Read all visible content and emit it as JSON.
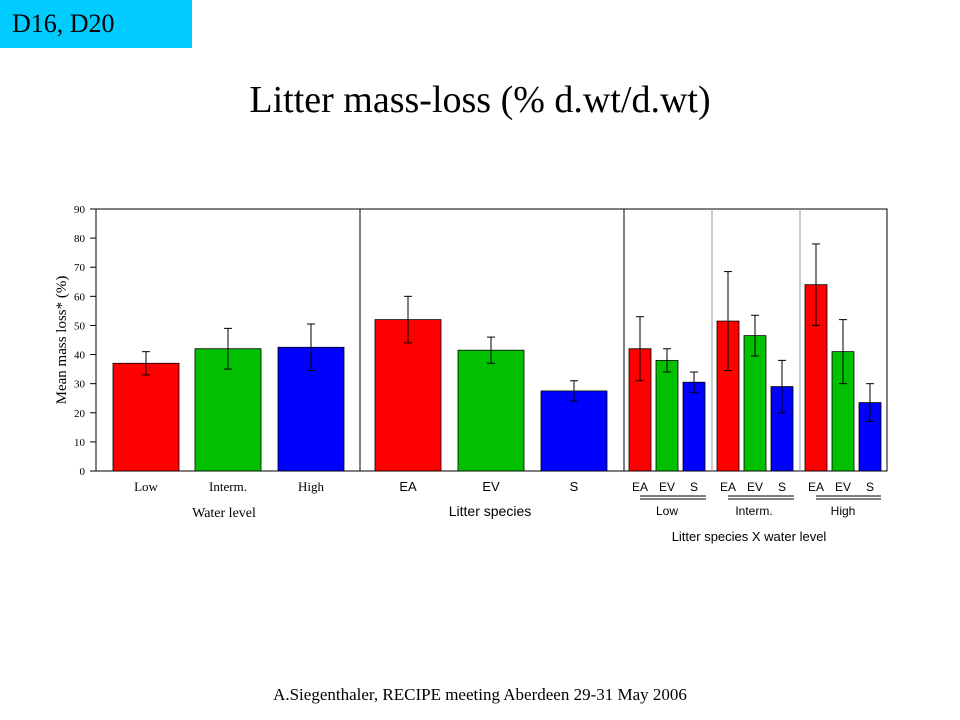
{
  "tag": "D16, D20",
  "title": "Litter mass-loss (% d.wt/d.wt)",
  "footer": "A.Siegenthaler, RECIPE meeting Aberdeen 29-31 May 2006",
  "colors": {
    "red": "#ff0000",
    "green": "#00c000",
    "blue": "#0000ff",
    "tag_bg": "#00ccff"
  },
  "chart_data": {
    "type": "bar",
    "ylabel": "Mean mass loss* (%)",
    "ylim": [
      0,
      90
    ],
    "yticks": [
      0,
      10,
      20,
      30,
      40,
      50,
      60,
      70,
      80,
      90
    ],
    "grid": false,
    "panels": [
      {
        "group_label": "Water level",
        "bars": [
          {
            "label": "Low",
            "value": 37,
            "err": 4,
            "color": "red"
          },
          {
            "label": "Interm.",
            "value": 42,
            "err": 7,
            "color": "green"
          },
          {
            "label": "High",
            "value": 42.5,
            "err": 8,
            "color": "blue"
          }
        ]
      },
      {
        "group_label": "Litter species",
        "bars": [
          {
            "label": "EA",
            "value": 52,
            "err": 8,
            "color": "red"
          },
          {
            "label": "EV",
            "value": 41.5,
            "err": 4.5,
            "color": "green"
          },
          {
            "label": "S",
            "value": 27.5,
            "err": 3.5,
            "color": "blue"
          }
        ]
      },
      {
        "group_label": "Low",
        "bars": [
          {
            "label": "EA",
            "value": 42,
            "err": 11,
            "color": "red"
          },
          {
            "label": "EV",
            "value": 38,
            "err": 4,
            "color": "green"
          },
          {
            "label": "S",
            "value": 30.5,
            "err": 3.5,
            "color": "blue"
          }
        ]
      },
      {
        "group_label": "Interm.",
        "bars": [
          {
            "label": "EA",
            "value": 51.5,
            "err": 17,
            "color": "red"
          },
          {
            "label": "EV",
            "value": 46.5,
            "err": 7,
            "color": "green"
          },
          {
            "label": "S",
            "value": 29,
            "err": 9,
            "color": "blue"
          }
        ]
      },
      {
        "group_label": "High",
        "bars": [
          {
            "label": "EA",
            "value": 64,
            "err": 14,
            "color": "red"
          },
          {
            "label": "EV",
            "value": 41,
            "err": 11,
            "color": "green"
          },
          {
            "label": "S",
            "value": 23.5,
            "err": 6.5,
            "color": "blue"
          }
        ]
      }
    ],
    "interaction_label": "Litter species X water level"
  }
}
